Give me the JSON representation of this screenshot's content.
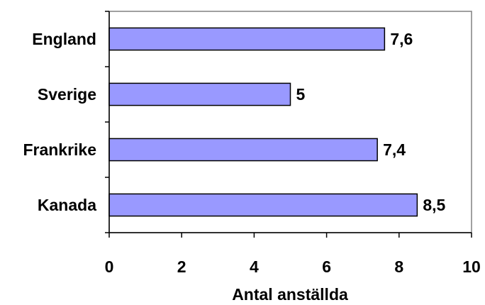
{
  "chart_data": {
    "type": "bar",
    "orientation": "horizontal",
    "categories": [
      "England",
      "Sverige",
      "Frankrike",
      "Kanada"
    ],
    "values": [
      7.6,
      5,
      7.4,
      8.5
    ],
    "data_labels": [
      "7,6",
      "5",
      "7,4",
      "8,5"
    ],
    "title": "",
    "xlabel": "Antal anställda",
    "ylabel": "",
    "xlim": [
      0,
      10
    ],
    "x_ticks": [
      0,
      2,
      4,
      6,
      8,
      10
    ],
    "x_tick_labels": [
      "0",
      "2",
      "4",
      "6",
      "8",
      "10"
    ],
    "grid": false,
    "legend": "none",
    "bar_color": "#9999ff",
    "bar_edge_color": "#000000",
    "plot_border_color": "#808080"
  }
}
